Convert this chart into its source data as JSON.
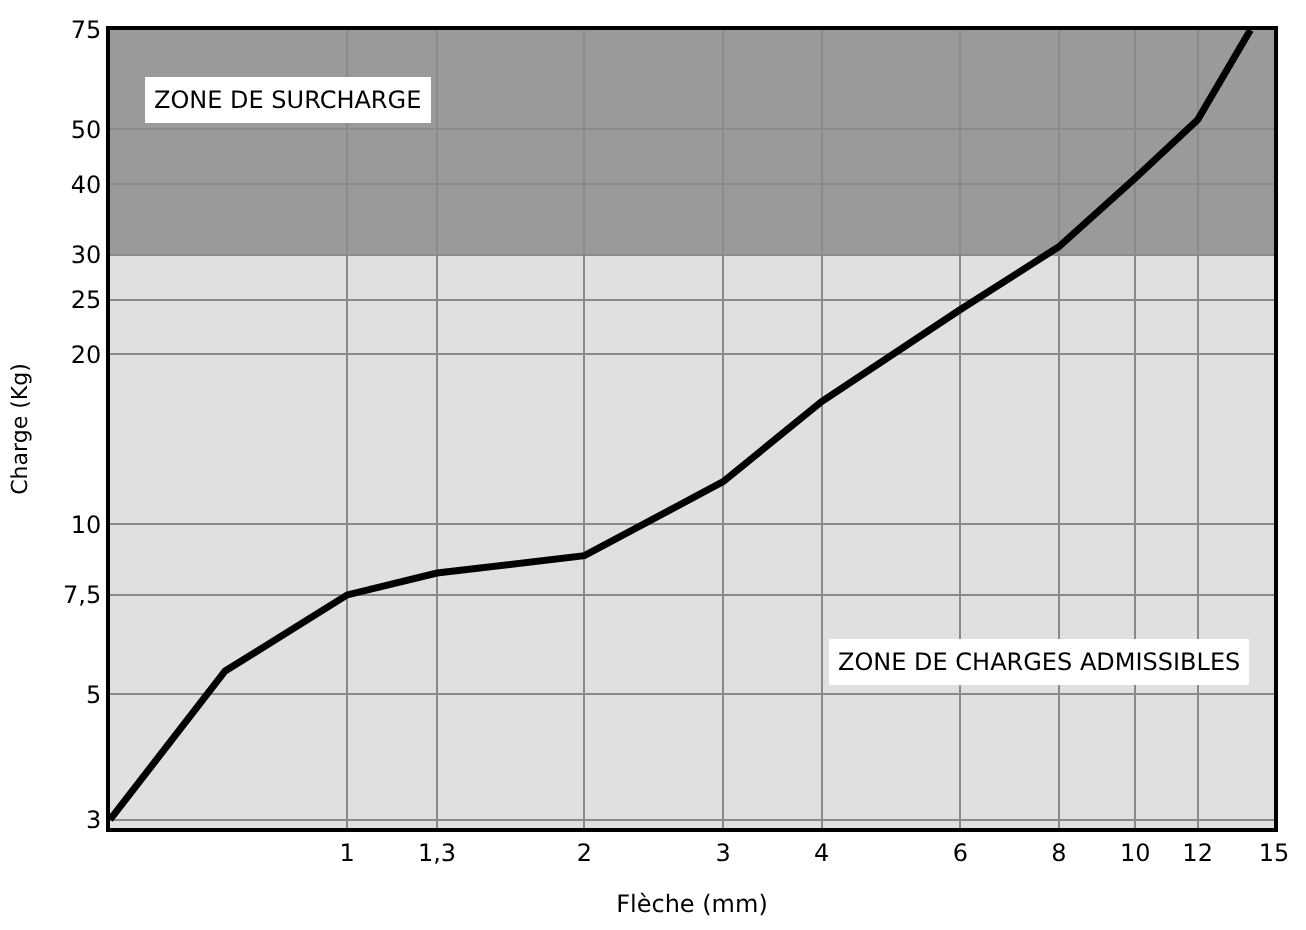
{
  "chart_data": {
    "type": "line",
    "xlabel": "Flèche (mm)",
    "ylabel": "Charge (Kg)",
    "x": [
      0.5,
      0.7,
      1,
      1.3,
      2,
      3,
      4,
      6,
      8,
      10,
      12,
      14
    ],
    "series": [
      {
        "color": "#000000",
        "values": [
          3,
          5.5,
          7.5,
          8.2,
          8.8,
          11.9,
          16.5,
          24,
          31,
          41,
          52,
          75
        ]
      }
    ],
    "log": "xy",
    "xlim": [
      0.5,
      15
    ],
    "ylim": [
      2.9,
      75
    ],
    "xticks": [
      1,
      {
        "value": 1.3,
        "label": "1,3"
      },
      2,
      3,
      4,
      6,
      8,
      10,
      12,
      15
    ],
    "yticks": [
      3,
      5,
      {
        "value": 7.5,
        "label": "7,5"
      },
      10,
      20,
      25,
      30,
      40,
      50,
      75
    ],
    "bands": [
      {
        "axis": "y",
        "from": 30,
        "to": 75,
        "label": "ZONE DE SURCHARGE",
        "color": "#9a9a9a"
      },
      {
        "axis": "y",
        "from": 2.9,
        "to": 30,
        "label": "ZONE DE CHARGES ADMISSIBLES",
        "color": "#e0e0e0"
      }
    ],
    "grid": true,
    "marker": "none",
    "line_style": "solid"
  }
}
